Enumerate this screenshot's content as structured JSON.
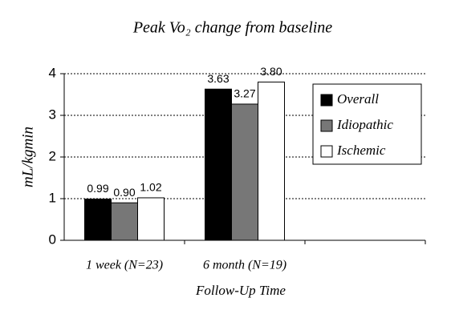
{
  "chart_data": {
    "type": "bar",
    "title": "Peak Vo₂ change from baseline",
    "y_label": "mL/kgmin",
    "x_label": "Follow-Up Time",
    "categories": [
      "1 week (N=23)",
      "6 month (N=19)",
      null
    ],
    "series": [
      {
        "name": "Overall",
        "color": "#000000",
        "values": [
          0.99,
          3.63,
          null
        ],
        "value_labels": [
          "0.99",
          "3.63",
          null
        ]
      },
      {
        "name": "Idiopathic",
        "color": "#777777",
        "values": [
          0.9,
          3.27,
          null
        ],
        "value_labels": [
          "0.90",
          "3.27",
          null
        ]
      },
      {
        "name": "Ischemic",
        "color": "#ffffff",
        "values": [
          1.02,
          3.8,
          null
        ],
        "value_labels": [
          "1.02",
          "3.80",
          null
        ]
      }
    ],
    "ylim": [
      0,
      4
    ],
    "yticks": [
      0,
      1,
      2,
      3,
      4
    ],
    "grid": true,
    "legend": "upper right"
  }
}
